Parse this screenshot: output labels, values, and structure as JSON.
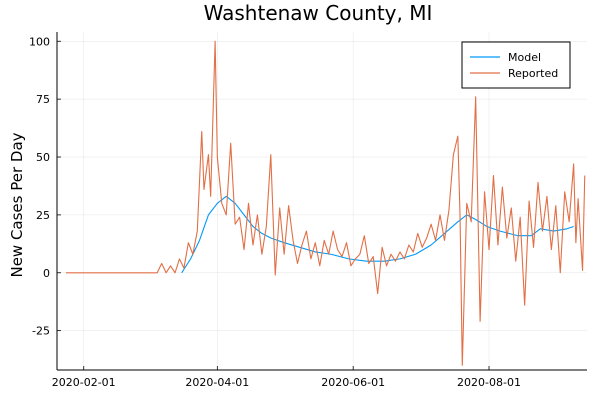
{
  "chart_data": {
    "type": "line",
    "title": "Washtenaw County, MI",
    "xlabel": "",
    "ylabel": "New Cases Per Day",
    "x_axis_type": "date",
    "xlim": [
      "2020-01-20",
      "2020-09-14"
    ],
    "ylim": [
      -42,
      104
    ],
    "x_ticks": [
      "2020-02-01",
      "2020-04-01",
      "2020-06-01",
      "2020-08-01"
    ],
    "y_ticks": [
      -25,
      0,
      25,
      50,
      75,
      100
    ],
    "grid": true,
    "legend_position": "top-right",
    "series": [
      {
        "name": "Model",
        "color": "#009af9",
        "points": [
          [
            "2020-03-16",
            0
          ],
          [
            "2020-03-20",
            6
          ],
          [
            "2020-03-24",
            14
          ],
          [
            "2020-03-28",
            25
          ],
          [
            "2020-04-01",
            30
          ],
          [
            "2020-04-05",
            33
          ],
          [
            "2020-04-09",
            30
          ],
          [
            "2020-04-13",
            25
          ],
          [
            "2020-04-17",
            20
          ],
          [
            "2020-04-21",
            17
          ],
          [
            "2020-04-25",
            15
          ],
          [
            "2020-05-01",
            13
          ],
          [
            "2020-05-08",
            11
          ],
          [
            "2020-05-15",
            9
          ],
          [
            "2020-05-22",
            8
          ],
          [
            "2020-05-30",
            6
          ],
          [
            "2020-06-07",
            5
          ],
          [
            "2020-06-15",
            5
          ],
          [
            "2020-06-22",
            6
          ],
          [
            "2020-06-29",
            8
          ],
          [
            "2020-07-06",
            12
          ],
          [
            "2020-07-12",
            17
          ],
          [
            "2020-07-18",
            22
          ],
          [
            "2020-07-22",
            25
          ],
          [
            "2020-07-26",
            23
          ],
          [
            "2020-07-31",
            20
          ],
          [
            "2020-08-06",
            18
          ],
          [
            "2020-08-14",
            16
          ],
          [
            "2020-08-20",
            16
          ],
          [
            "2020-08-24",
            19
          ],
          [
            "2020-08-30",
            18
          ],
          [
            "2020-09-05",
            19
          ],
          [
            "2020-09-08",
            20
          ]
        ]
      },
      {
        "name": "Reported",
        "color": "#e26f46",
        "points": [
          [
            "2020-01-24",
            0
          ],
          [
            "2020-03-05",
            0
          ],
          [
            "2020-03-07",
            4
          ],
          [
            "2020-03-09",
            0
          ],
          [
            "2020-03-11",
            3
          ],
          [
            "2020-03-13",
            0
          ],
          [
            "2020-03-15",
            6
          ],
          [
            "2020-03-17",
            2
          ],
          [
            "2020-03-19",
            13
          ],
          [
            "2020-03-21",
            8
          ],
          [
            "2020-03-23",
            18
          ],
          [
            "2020-03-25",
            61
          ],
          [
            "2020-03-26",
            36
          ],
          [
            "2020-03-28",
            51
          ],
          [
            "2020-03-29",
            33
          ],
          [
            "2020-03-31",
            100
          ],
          [
            "2020-04-01",
            50
          ],
          [
            "2020-04-03",
            30
          ],
          [
            "2020-04-05",
            25
          ],
          [
            "2020-04-07",
            56
          ],
          [
            "2020-04-09",
            21
          ],
          [
            "2020-04-11",
            24
          ],
          [
            "2020-04-13",
            10
          ],
          [
            "2020-04-15",
            30
          ],
          [
            "2020-04-17",
            12
          ],
          [
            "2020-04-19",
            25
          ],
          [
            "2020-04-21",
            8
          ],
          [
            "2020-04-23",
            20
          ],
          [
            "2020-04-25",
            51
          ],
          [
            "2020-04-27",
            -1
          ],
          [
            "2020-04-29",
            28
          ],
          [
            "2020-05-01",
            8
          ],
          [
            "2020-05-03",
            29
          ],
          [
            "2020-05-05",
            14
          ],
          [
            "2020-05-07",
            4
          ],
          [
            "2020-05-09",
            12
          ],
          [
            "2020-05-11",
            18
          ],
          [
            "2020-05-13",
            6
          ],
          [
            "2020-05-15",
            13
          ],
          [
            "2020-05-17",
            3
          ],
          [
            "2020-05-19",
            14
          ],
          [
            "2020-05-21",
            8
          ],
          [
            "2020-05-23",
            18
          ],
          [
            "2020-05-25",
            10
          ],
          [
            "2020-05-27",
            7
          ],
          [
            "2020-05-29",
            13
          ],
          [
            "2020-05-31",
            3
          ],
          [
            "2020-06-02",
            6
          ],
          [
            "2020-06-04",
            8
          ],
          [
            "2020-06-06",
            16
          ],
          [
            "2020-06-08",
            4
          ],
          [
            "2020-06-10",
            7
          ],
          [
            "2020-06-12",
            -9
          ],
          [
            "2020-06-14",
            11
          ],
          [
            "2020-06-16",
            3
          ],
          [
            "2020-06-18",
            8
          ],
          [
            "2020-06-20",
            5
          ],
          [
            "2020-06-22",
            9
          ],
          [
            "2020-06-24",
            6
          ],
          [
            "2020-06-26",
            12
          ],
          [
            "2020-06-28",
            9
          ],
          [
            "2020-06-30",
            17
          ],
          [
            "2020-07-02",
            11
          ],
          [
            "2020-07-04",
            15
          ],
          [
            "2020-07-06",
            21
          ],
          [
            "2020-07-08",
            14
          ],
          [
            "2020-07-10",
            25
          ],
          [
            "2020-07-12",
            14
          ],
          [
            "2020-07-14",
            27
          ],
          [
            "2020-07-16",
            51
          ],
          [
            "2020-07-18",
            59
          ],
          [
            "2020-07-19",
            24
          ],
          [
            "2020-07-20",
            -40
          ],
          [
            "2020-07-22",
            30
          ],
          [
            "2020-07-24",
            22
          ],
          [
            "2020-07-26",
            76
          ],
          [
            "2020-07-28",
            -21
          ],
          [
            "2020-07-30",
            35
          ],
          [
            "2020-08-01",
            10
          ],
          [
            "2020-08-03",
            42
          ],
          [
            "2020-08-05",
            12
          ],
          [
            "2020-08-07",
            37
          ],
          [
            "2020-08-09",
            15
          ],
          [
            "2020-08-11",
            28
          ],
          [
            "2020-08-13",
            5
          ],
          [
            "2020-08-15",
            24
          ],
          [
            "2020-08-17",
            -14
          ],
          [
            "2020-08-19",
            31
          ],
          [
            "2020-08-21",
            11
          ],
          [
            "2020-08-23",
            39
          ],
          [
            "2020-08-25",
            18
          ],
          [
            "2020-08-27",
            33
          ],
          [
            "2020-08-29",
            10
          ],
          [
            "2020-08-31",
            29
          ],
          [
            "2020-09-02",
            0
          ],
          [
            "2020-09-04",
            35
          ],
          [
            "2020-09-06",
            22
          ],
          [
            "2020-09-08",
            47
          ],
          [
            "2020-09-09",
            13
          ],
          [
            "2020-09-10",
            32
          ],
          [
            "2020-09-12",
            1
          ],
          [
            "2020-09-13",
            42
          ]
        ]
      }
    ]
  }
}
